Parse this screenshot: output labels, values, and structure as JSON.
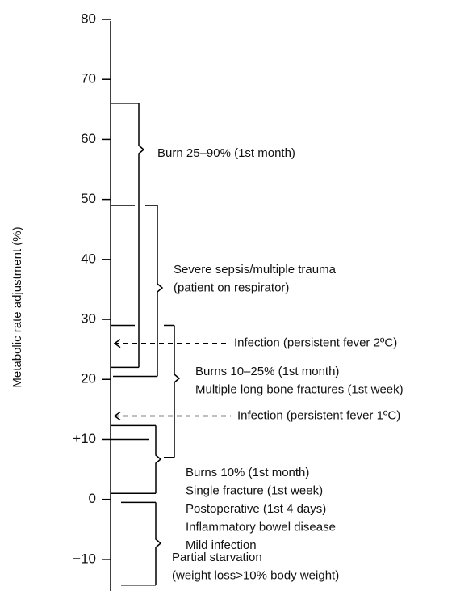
{
  "chart_data": {
    "type": "bracket",
    "y_label": "Metabolic rate adjustment (%)",
    "ylim": [
      -15,
      80
    ],
    "yticks": [
      {
        "value": -10,
        "label": "−10"
      },
      0,
      {
        "value": 10,
        "label": "+10"
      },
      20,
      30,
      40,
      50,
      60,
      70,
      80
    ],
    "level_marks": [
      49,
      29,
      10
    ],
    "ranges": [
      {
        "lo": 22,
        "hi": 66,
        "lines": [
          "Burn 25–90% (1st month)"
        ]
      },
      {
        "lo": 20.5,
        "hi": 49,
        "lines": [
          "Severe sepsis/multiple trauma",
          "(patient on respirator)"
        ]
      },
      {
        "lo": 7,
        "hi": 29,
        "lines": [
          "Burns 10–25% (1st month)",
          "Multiple long bone fractures (1st week)"
        ]
      },
      {
        "lo": 1,
        "hi": 12.3,
        "lines": [
          "Burns 10% (1st month)",
          "Single fracture (1st week)",
          "Postoperative (1st 4 days)",
          "Inflammatory bowel disease",
          "Mild infection"
        ]
      },
      {
        "lo": -14.3,
        "hi": -0.5,
        "lines": [
          "Partial starvation",
          "(weight loss>10% body weight)"
        ]
      }
    ],
    "arrows": [
      {
        "value": 26,
        "label": "Infection (persistent fever 2ºC)"
      },
      {
        "value": 13.9,
        "label": "Infection (persistent fever 1ºC)"
      }
    ]
  }
}
